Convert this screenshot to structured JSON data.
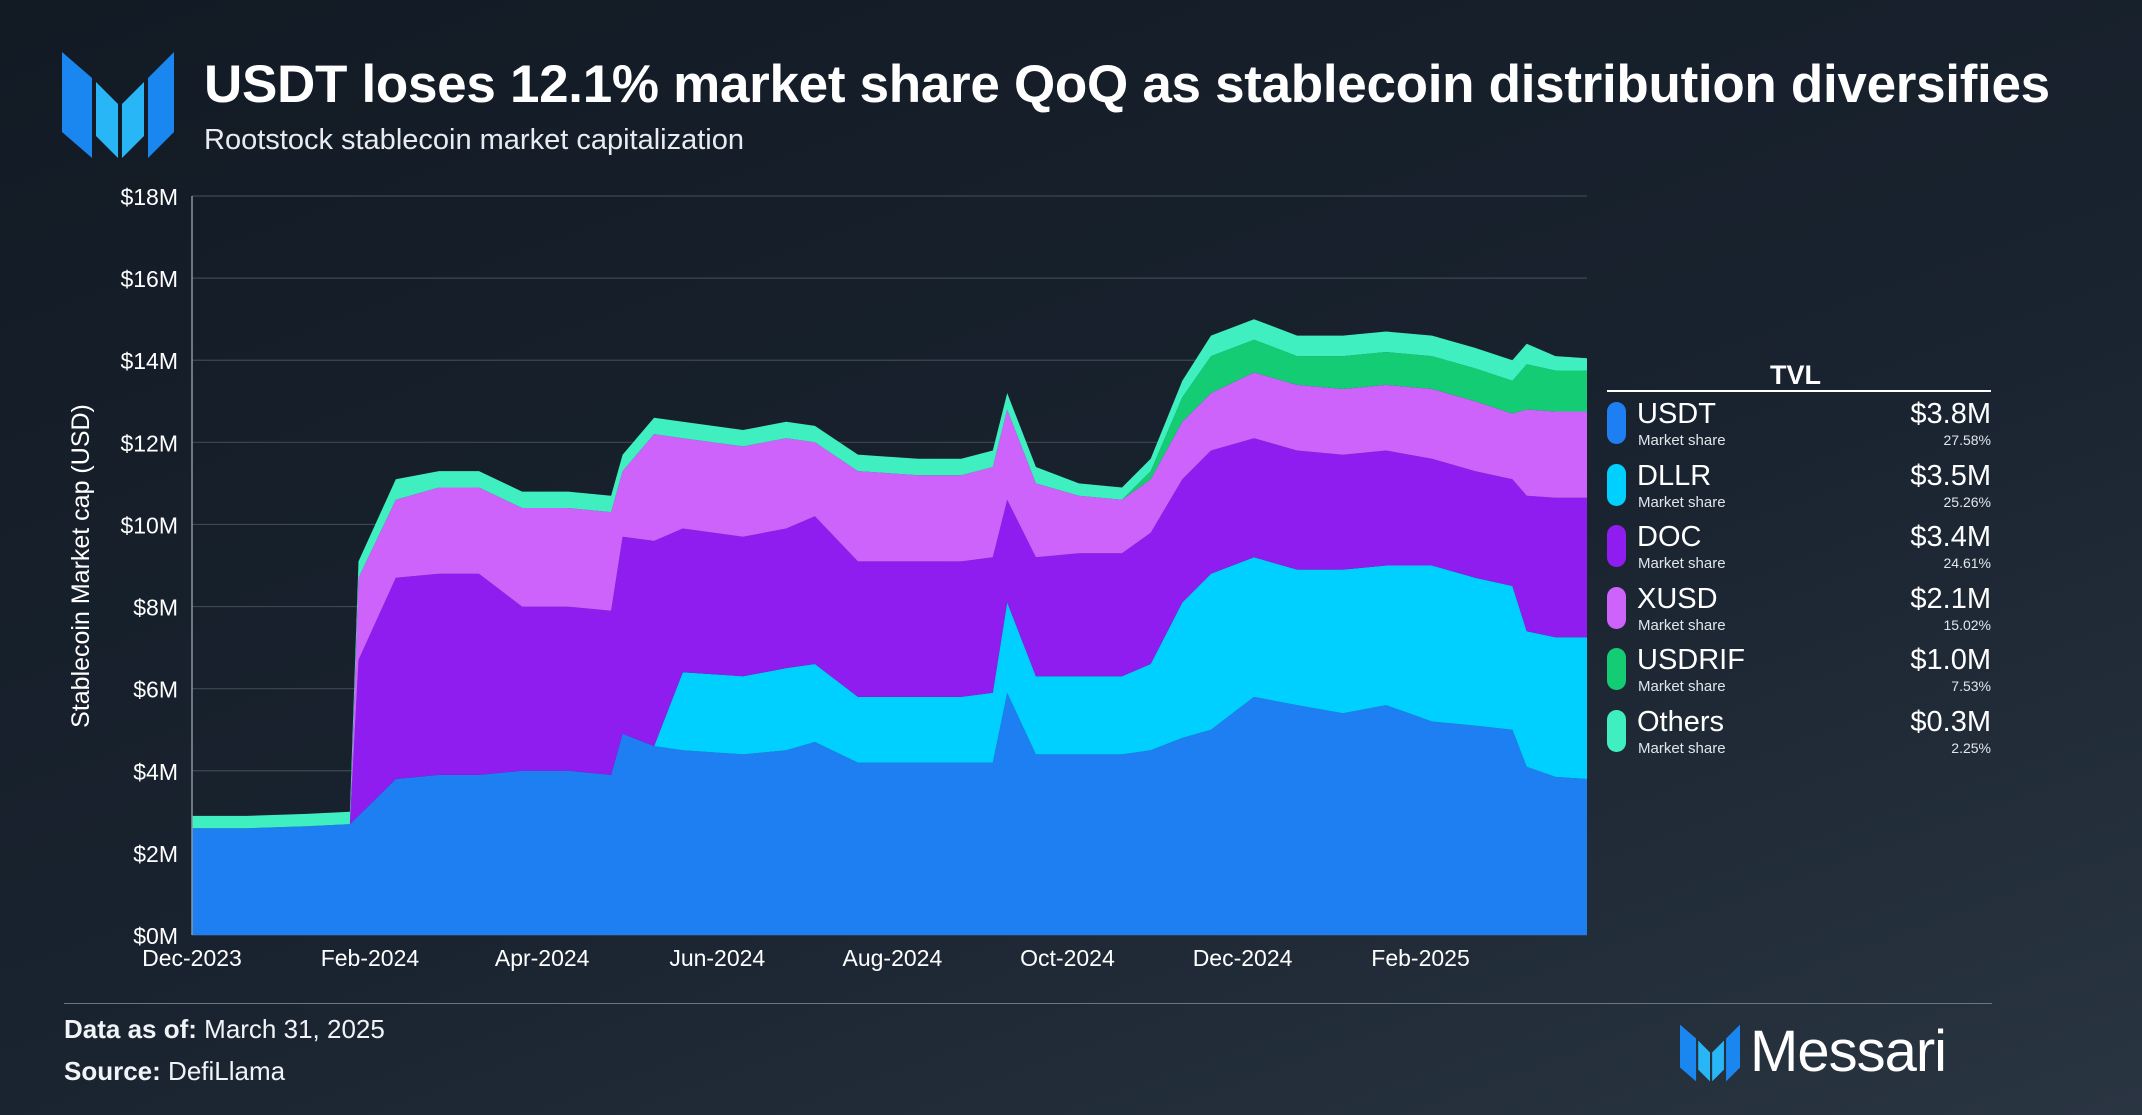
{
  "header": {
    "title": "USDT loses 12.1% market share QoQ as stablecoin distribution diversifies",
    "subtitle": "Rootstock stablecoin market capitalization"
  },
  "legend": {
    "header": "TVL",
    "items": [
      {
        "name": "USDT",
        "sub": "Market share",
        "value": "$3.8M",
        "pct": "27.58%",
        "color": "#1e7ff2"
      },
      {
        "name": "DLLR",
        "sub": "Market share",
        "value": "$3.5M",
        "pct": "25.26%",
        "color": "#00d0ff"
      },
      {
        "name": "DOC",
        "sub": "Market share",
        "value": "$3.4M",
        "pct": "24.61%",
        "color": "#8f1df0"
      },
      {
        "name": "XUSD",
        "sub": "Market share",
        "value": "$2.1M",
        "pct": "15.02%",
        "color": "#cd63fb"
      },
      {
        "name": "USDRIF",
        "sub": "Market share",
        "value": "$1.0M",
        "pct": "7.53%",
        "color": "#14cc74"
      },
      {
        "name": "Others",
        "sub": "Market share",
        "value": "$0.3M",
        "pct": "2.25%",
        "color": "#3fefc0"
      }
    ]
  },
  "footer": {
    "data_as_of_label": "Data as of:",
    "data_as_of_value": "March 31, 2025",
    "source_label": "Source:",
    "source_value": "DefiLlama"
  },
  "brand": {
    "name": "Messari"
  },
  "chart_data": {
    "type": "area",
    "stacked": true,
    "title": "USDT loses 12.1% market share QoQ as stablecoin distribution diversifies",
    "subtitle": "Rootstock stablecoin market capitalization",
    "xlabel": "",
    "ylabel": "Stablecoin Market cap (USD)",
    "ylim": [
      0,
      18
    ],
    "y_unit": "$M",
    "yticks": [
      0,
      2,
      4,
      6,
      8,
      10,
      12,
      14,
      16,
      18
    ],
    "ytick_labels": [
      "$0M",
      "$2M",
      "$4M",
      "$6M",
      "$8M",
      "$10M",
      "$12M",
      "$14M",
      "$16M",
      "$18M"
    ],
    "xticks": [
      "2023-12-01",
      "2024-02-01",
      "2024-04-01",
      "2024-06-01",
      "2024-08-01",
      "2024-10-01",
      "2024-12-01",
      "2025-02-01"
    ],
    "xtick_labels": [
      "Dec-2023",
      "Feb-2024",
      "Apr-2024",
      "Jun-2024",
      "Aug-2024",
      "Oct-2024",
      "Dec-2024",
      "Feb-2025"
    ],
    "xlim": [
      "2023-12-01",
      "2025-03-31"
    ],
    "grid": true,
    "legend_position": "right",
    "x": [
      "2023-12-01",
      "2023-12-20",
      "2024-01-10",
      "2024-01-25",
      "2024-01-28",
      "2024-02-10",
      "2024-02-25",
      "2024-03-10",
      "2024-03-25",
      "2024-04-10",
      "2024-04-25",
      "2024-04-29",
      "2024-05-10",
      "2024-05-20",
      "2024-06-10",
      "2024-06-25",
      "2024-07-05",
      "2024-07-20",
      "2024-08-10",
      "2024-08-25",
      "2024-09-05",
      "2024-09-10",
      "2024-09-20",
      "2024-10-05",
      "2024-10-20",
      "2024-10-30",
      "2024-11-10",
      "2024-11-20",
      "2024-12-05",
      "2024-12-20",
      "2025-01-05",
      "2025-01-20",
      "2025-02-05",
      "2025-02-20",
      "2025-03-05",
      "2025-03-10",
      "2025-03-20",
      "2025-03-31"
    ],
    "series": [
      {
        "name": "USDT",
        "color": "#1e7ff2",
        "values": [
          2.6,
          2.6,
          2.65,
          2.7,
          2.9,
          3.8,
          3.9,
          3.9,
          4.0,
          4.0,
          3.9,
          4.9,
          4.6,
          4.5,
          4.4,
          4.5,
          4.7,
          4.2,
          4.2,
          4.2,
          4.2,
          5.9,
          4.4,
          4.4,
          4.4,
          4.5,
          4.8,
          5.0,
          5.8,
          5.6,
          5.4,
          5.6,
          5.2,
          5.1,
          5.0,
          4.1,
          3.85,
          3.8
        ]
      },
      {
        "name": "DLLR",
        "color": "#00d0ff",
        "values": [
          0,
          0,
          0,
          0,
          0,
          0,
          0,
          0,
          0,
          0,
          0,
          0,
          0,
          1.9,
          1.9,
          2.0,
          1.9,
          1.6,
          1.6,
          1.6,
          1.7,
          2.2,
          1.9,
          1.9,
          1.9,
          2.1,
          3.3,
          3.8,
          3.4,
          3.3,
          3.5,
          3.4,
          3.8,
          3.6,
          3.5,
          3.3,
          3.4,
          3.45
        ]
      },
      {
        "name": "DOC",
        "color": "#8f1df0",
        "values": [
          0,
          0,
          0,
          0,
          3.8,
          4.9,
          4.9,
          4.9,
          4.0,
          4.0,
          4.0,
          4.8,
          5.0,
          3.5,
          3.4,
          3.4,
          3.6,
          3.3,
          3.3,
          3.3,
          3.3,
          2.5,
          2.9,
          3.0,
          3.0,
          3.2,
          3.0,
          3.0,
          2.9,
          2.9,
          2.8,
          2.8,
          2.6,
          2.6,
          2.6,
          3.3,
          3.4,
          3.4
        ]
      },
      {
        "name": "XUSD",
        "color": "#cd63fb",
        "values": [
          0,
          0,
          0,
          0,
          2.0,
          1.9,
          2.1,
          2.1,
          2.4,
          2.4,
          2.4,
          1.6,
          2.6,
          2.2,
          2.2,
          2.2,
          1.8,
          2.2,
          2.1,
          2.1,
          2.2,
          2.2,
          1.8,
          1.4,
          1.3,
          1.3,
          1.4,
          1.4,
          1.6,
          1.6,
          1.6,
          1.6,
          1.7,
          1.7,
          1.6,
          2.1,
          2.1,
          2.1
        ]
      },
      {
        "name": "USDRIF",
        "color": "#14cc74",
        "values": [
          0,
          0,
          0,
          0,
          0,
          0,
          0,
          0,
          0,
          0,
          0,
          0,
          0,
          0,
          0,
          0,
          0,
          0,
          0,
          0,
          0,
          0,
          0,
          0,
          0,
          0.2,
          0.6,
          0.9,
          0.8,
          0.7,
          0.8,
          0.8,
          0.8,
          0.8,
          0.8,
          1.1,
          1.0,
          1.0
        ]
      },
      {
        "name": "Others",
        "color": "#3fefc0",
        "values": [
          0.3,
          0.3,
          0.3,
          0.3,
          0.4,
          0.5,
          0.4,
          0.4,
          0.4,
          0.4,
          0.4,
          0.4,
          0.4,
          0.4,
          0.4,
          0.4,
          0.4,
          0.4,
          0.4,
          0.4,
          0.4,
          0.4,
          0.4,
          0.3,
          0.3,
          0.3,
          0.4,
          0.5,
          0.5,
          0.5,
          0.5,
          0.5,
          0.5,
          0.5,
          0.5,
          0.5,
          0.35,
          0.3
        ]
      }
    ]
  }
}
